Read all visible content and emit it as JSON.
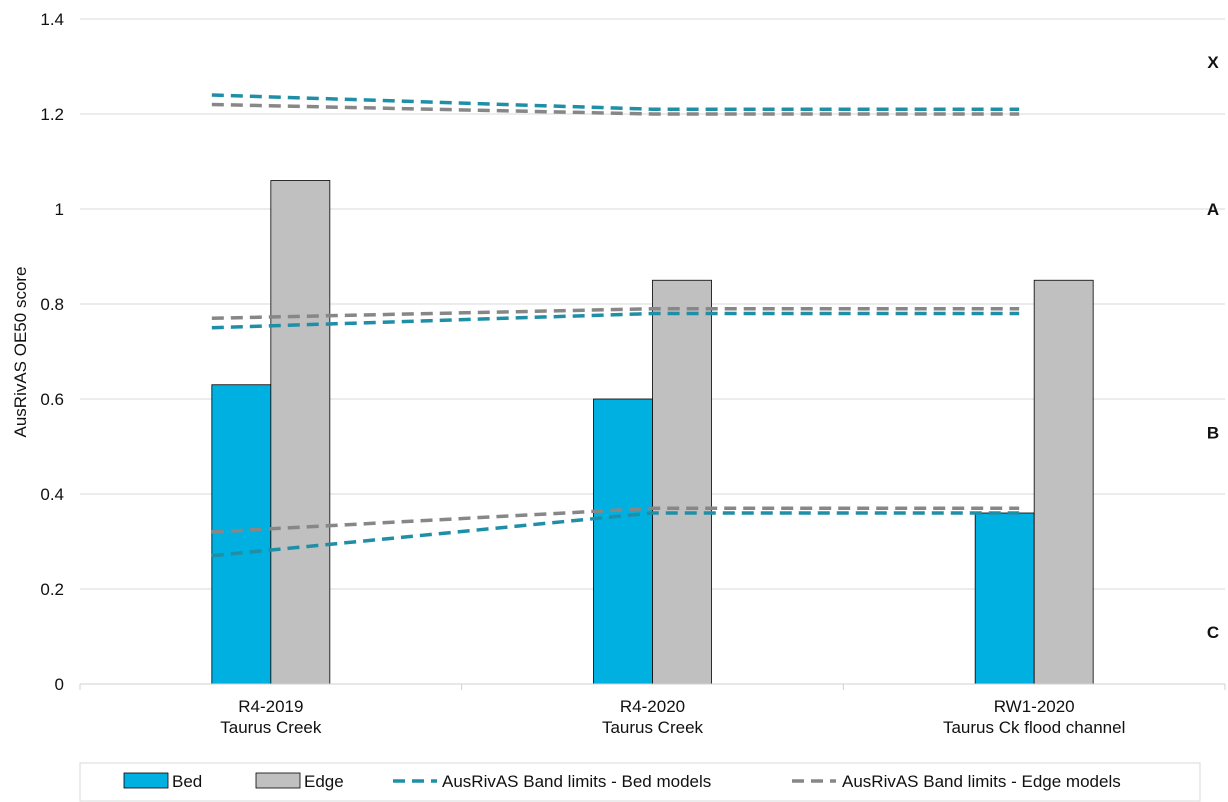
{
  "chart_data": {
    "type": "bar",
    "categories": [
      [
        "R4-2019",
        "Taurus Creek"
      ],
      [
        "R4-2020",
        "Taurus Creek"
      ],
      [
        "RW1-2020",
        "Taurus Ck flood channel"
      ]
    ],
    "series": [
      {
        "name": "Bed",
        "values": [
          0.63,
          0.6,
          0.36
        ],
        "color": "#00b0e0"
      },
      {
        "name": "Edge",
        "values": [
          1.06,
          0.85,
          0.85
        ],
        "color": "#c0c0c0"
      }
    ],
    "band_limit_lines": [
      {
        "name": "AusRivAS Band limits - Bed models",
        "color": "#1f8fa8",
        "lines": [
          [
            1.24,
            1.21,
            1.21
          ],
          [
            0.75,
            0.78,
            0.78
          ],
          [
            0.27,
            0.36,
            0.36
          ]
        ]
      },
      {
        "name": "AusRivAS Band limits - Edge models",
        "color": "#878787",
        "lines": [
          [
            1.22,
            1.2,
            1.2
          ],
          [
            0.77,
            0.79,
            0.79
          ],
          [
            0.32,
            0.37,
            0.37
          ]
        ]
      }
    ],
    "band_labels": [
      {
        "label": "X",
        "value": 1.31
      },
      {
        "label": "A",
        "value": 1.0
      },
      {
        "label": "B",
        "value": 0.53
      },
      {
        "label": "C",
        "value": 0.11
      }
    ],
    "ylabel": "AusRivAS  OE50 score",
    "xlabel": "",
    "ylim": [
      0,
      1.4
    ],
    "yticks": [
      "0",
      "0.2",
      "0.4",
      "0.6",
      "0.8",
      "1",
      "1.2",
      "1.4"
    ],
    "grid": true,
    "legend_position": "bottom"
  }
}
